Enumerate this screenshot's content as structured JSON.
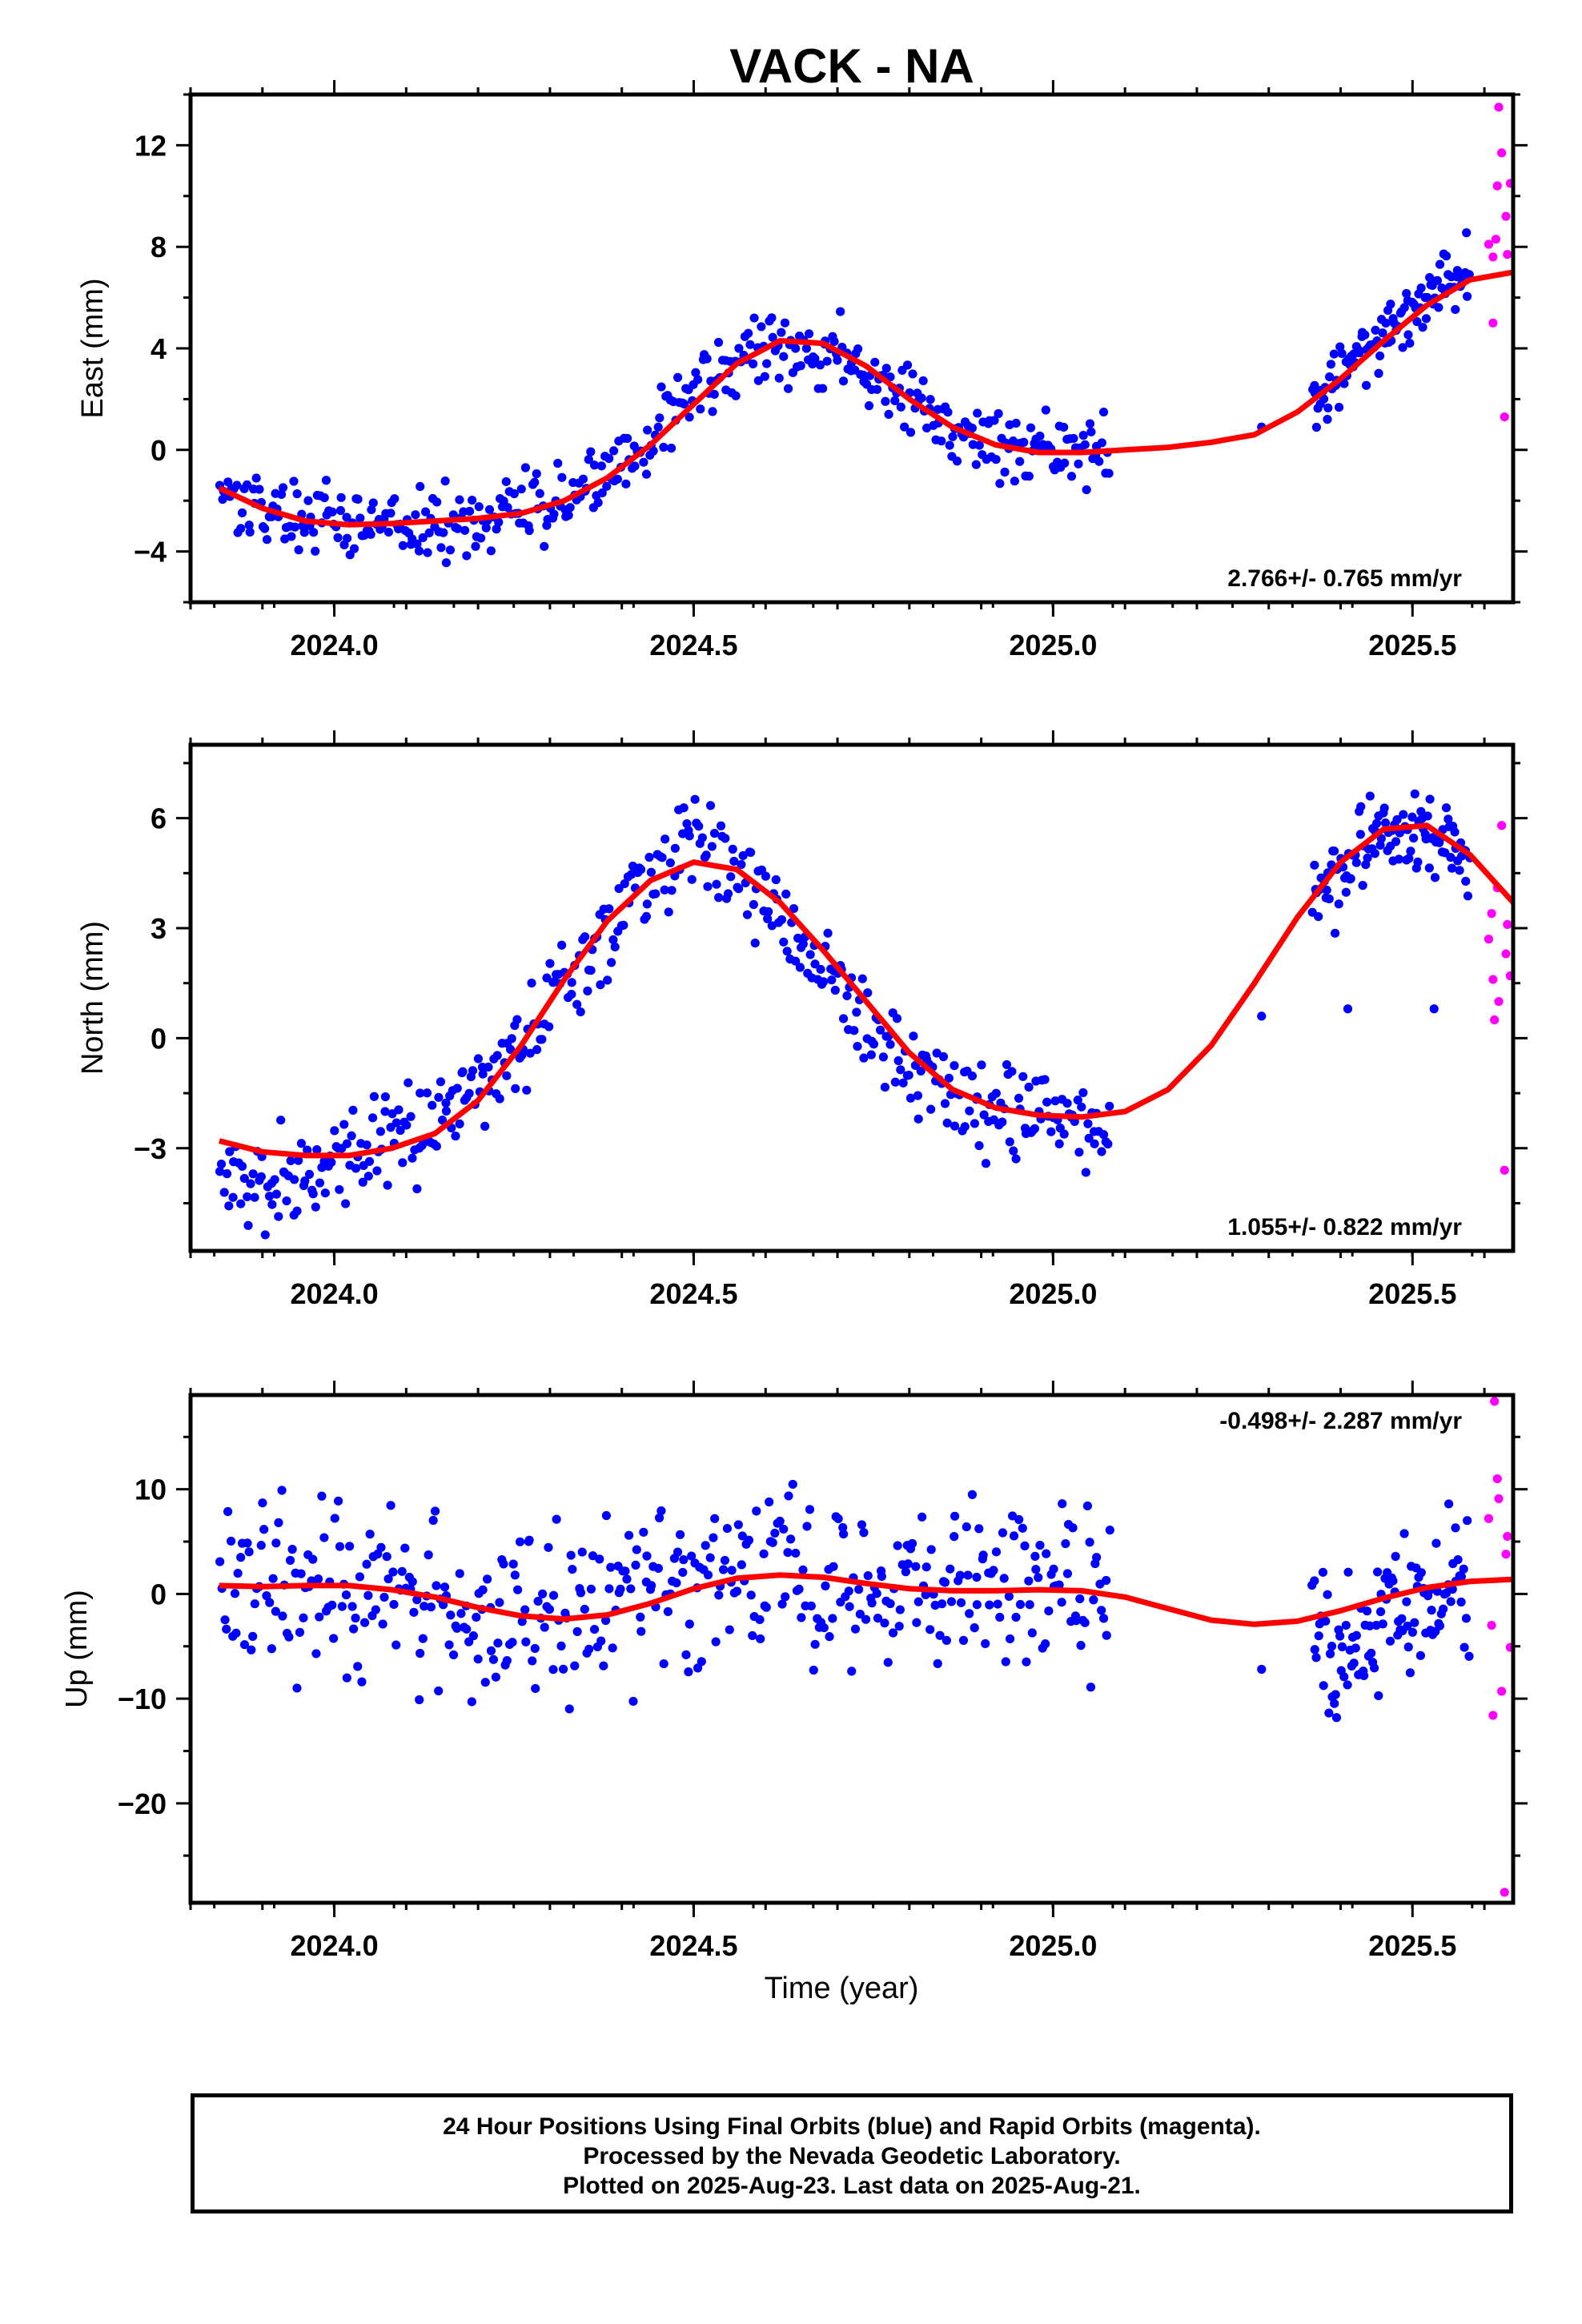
{
  "title": "VACK - NA",
  "xlabel": "Time (year)",
  "footer": {
    "line1": "24 Hour Positions Using Final Orbits (blue) and Rapid Orbits (magenta).",
    "line2": "Processed by the Nevada Geodetic Laboratory.",
    "line3": "Plotted on 2025-Aug-23. Last data on 2025-Aug-21."
  },
  "colors": {
    "final": "#0000ff",
    "rapid": "#ff00ff",
    "model": "#ff0000",
    "frame": "#000000"
  },
  "chart_data": [
    {
      "type": "scatter",
      "ylabel": "East (mm)",
      "rate_text": "2.766+/- 0.765 mm/yr",
      "xlim": [
        2023.8,
        2025.64
      ],
      "ylim": [
        -6,
        14
      ],
      "xticks": [
        "2024.0",
        "2024.5",
        "2025.0",
        "2025.5"
      ],
      "yticks": [
        "−4",
        "0",
        "4",
        "8",
        "12"
      ],
      "final_trend": {
        "t": [
          2023.84,
          2023.88,
          2023.92,
          2023.96,
          2024.0,
          2024.04,
          2024.08,
          2024.12,
          2024.16,
          2024.2,
          2024.24,
          2024.28,
          2024.32,
          2024.36,
          2024.4,
          2024.44,
          2024.48,
          2024.52,
          2024.56,
          2024.6,
          2024.64,
          2024.68,
          2024.72,
          2024.76,
          2024.8,
          2024.84,
          2024.88,
          2024.92,
          2024.96,
          2025.0,
          2025.04,
          2025.08
        ],
        "y": [
          -1.5,
          -1.9,
          -2.3,
          -2.6,
          -2.8,
          -2.9,
          -3.0,
          -3.0,
          -2.9,
          -2.8,
          -2.6,
          -2.3,
          -2.0,
          -1.3,
          -0.5,
          0.5,
          1.6,
          2.6,
          3.3,
          3.8,
          4.1,
          3.9,
          3.4,
          2.7,
          1.9,
          1.1,
          0.6,
          0.3,
          0.1,
          0.0,
          -0.1,
          -0.1
        ],
        "amp": 1.1
      },
      "final_trend2": {
        "t": [
          2025.36,
          2025.38,
          2025.4,
          2025.42,
          2025.44,
          2025.46,
          2025.48,
          2025.5,
          2025.52,
          2025.54,
          2025.56,
          2025.58
        ],
        "y": [
          1.7,
          2.2,
          2.7,
          3.3,
          3.9,
          4.5,
          5.0,
          5.6,
          6.1,
          6.5,
          6.8,
          7.0
        ],
        "amp": 1.0
      },
      "rapid": [
        [
          2025.606,
          8.1
        ],
        [
          2025.612,
          7.6
        ],
        [
          2025.618,
          10.4
        ],
        [
          2025.624,
          11.7
        ],
        [
          2025.63,
          9.2
        ],
        [
          2025.612,
          5.0
        ],
        [
          2025.628,
          1.3
        ],
        [
          2025.62,
          13.5
        ],
        [
          2025.636,
          10.5
        ],
        [
          2025.632,
          7.7
        ],
        [
          2025.616,
          8.3
        ]
      ],
      "model": {
        "t": [
          2023.84,
          2023.9,
          2023.96,
          2024.02,
          2024.08,
          2024.14,
          2024.2,
          2024.26,
          2024.32,
          2024.38,
          2024.44,
          2024.5,
          2024.56,
          2024.62,
          2024.68,
          2024.74,
          2024.8,
          2024.86,
          2024.92,
          2024.98,
          2025.04,
          2025.1,
          2025.16,
          2025.22,
          2025.28,
          2025.34,
          2025.4,
          2025.46,
          2025.52,
          2025.58,
          2025.64
        ],
        "y": [
          -1.5,
          -2.3,
          -2.8,
          -2.95,
          -2.9,
          -2.8,
          -2.7,
          -2.5,
          -2.0,
          -1.1,
          0.2,
          1.8,
          3.4,
          4.3,
          4.2,
          3.3,
          2.0,
          0.9,
          0.2,
          -0.1,
          -0.1,
          0.0,
          0.1,
          0.3,
          0.6,
          1.5,
          2.8,
          4.3,
          5.7,
          6.7,
          7.0
        ]
      }
    },
    {
      "type": "scatter",
      "ylabel": "North (mm)",
      "rate_text": "1.055+/- 0.822 mm/yr",
      "xlim": [
        2023.8,
        2025.64
      ],
      "ylim": [
        -5.8,
        8
      ],
      "xticks": [
        "2024.0",
        "2024.5",
        "2025.0",
        "2025.5"
      ],
      "yticks": [
        "−3",
        "0",
        "3",
        "6"
      ],
      "final_trend": {
        "t": [
          2023.84,
          2023.88,
          2023.92,
          2023.96,
          2024.0,
          2024.04,
          2024.08,
          2024.12,
          2024.16,
          2024.2,
          2024.24,
          2024.28,
          2024.32,
          2024.36,
          2024.4,
          2024.44,
          2024.48,
          2024.52,
          2024.56,
          2024.6,
          2024.64,
          2024.68,
          2024.72,
          2024.76,
          2024.8,
          2024.84,
          2024.88,
          2024.92,
          2024.96,
          2025.0,
          2025.04,
          2025.08
        ],
        "y": [
          -3.8,
          -4.2,
          -3.9,
          -3.6,
          -3.4,
          -3.0,
          -2.6,
          -2.4,
          -1.9,
          -1.2,
          -0.6,
          0.2,
          1.3,
          2.5,
          3.7,
          4.6,
          5.4,
          5.6,
          4.8,
          3.8,
          2.7,
          1.8,
          1.0,
          0.0,
          -0.7,
          -1.4,
          -1.8,
          -2.1,
          -2.2,
          -2.0,
          -2.2,
          -2.6
        ],
        "amp": 1.0
      },
      "final_trend2": {
        "t": [
          2025.36,
          2025.38,
          2025.4,
          2025.42,
          2025.44,
          2025.46,
          2025.48,
          2025.5,
          2025.52,
          2025.54,
          2025.56,
          2025.58
        ],
        "y": [
          3.7,
          4.0,
          4.6,
          5.0,
          5.3,
          5.5,
          5.6,
          5.6,
          5.5,
          5.3,
          5.1,
          4.9
        ],
        "amp": 0.9
      },
      "rapid": [
        [
          2025.606,
          2.7
        ],
        [
          2025.612,
          1.6
        ],
        [
          2025.618,
          4.1
        ],
        [
          2025.624,
          5.8
        ],
        [
          2025.63,
          2.3
        ],
        [
          2025.614,
          0.5
        ],
        [
          2025.628,
          -3.6
        ],
        [
          2025.62,
          1.0
        ],
        [
          2025.636,
          1.7
        ],
        [
          2025.632,
          3.1
        ],
        [
          2025.61,
          3.4
        ]
      ],
      "model": {
        "t": [
          2023.84,
          2023.9,
          2023.96,
          2024.02,
          2024.08,
          2024.14,
          2024.2,
          2024.26,
          2024.32,
          2024.38,
          2024.44,
          2024.5,
          2024.56,
          2024.62,
          2024.68,
          2024.74,
          2024.8,
          2024.86,
          2024.92,
          2024.98,
          2025.04,
          2025.1,
          2025.16,
          2025.22,
          2025.28,
          2025.34,
          2025.4,
          2025.46,
          2025.52,
          2025.58,
          2025.64
        ],
        "y": [
          -2.8,
          -3.1,
          -3.2,
          -3.2,
          -3.0,
          -2.6,
          -1.7,
          -0.2,
          1.6,
          3.2,
          4.3,
          4.8,
          4.6,
          3.7,
          2.4,
          1.0,
          -0.4,
          -1.4,
          -1.9,
          -2.1,
          -2.15,
          -2.0,
          -1.4,
          -0.2,
          1.5,
          3.3,
          4.8,
          5.7,
          5.8,
          5.0,
          3.7
        ]
      }
    },
    {
      "type": "scatter",
      "ylabel": "Up (mm)",
      "rate_text": "-0.498+/- 2.287 mm/yr",
      "xlim": [
        2023.8,
        2025.64
      ],
      "ylim": [
        -29.5,
        19
      ],
      "xticks": [
        "2024.0",
        "2024.5",
        "2025.0",
        "2025.5"
      ],
      "yticks": [
        "−20",
        "−10",
        "0",
        "10"
      ],
      "final_trend": {
        "t": [
          2023.84,
          2023.88,
          2023.92,
          2023.96,
          2024.0,
          2024.04,
          2024.08,
          2024.12,
          2024.16,
          2024.2,
          2024.24,
          2024.28,
          2024.32,
          2024.36,
          2024.4,
          2024.44,
          2024.48,
          2024.52,
          2024.56,
          2024.6,
          2024.64,
          2024.68,
          2024.72,
          2024.76,
          2024.8,
          2024.84,
          2024.88,
          2024.92,
          2024.96,
          2025.0,
          2025.04,
          2025.08
        ],
        "y": [
          1.5,
          1.2,
          0.8,
          0.4,
          0.5,
          0.8,
          0.6,
          0.2,
          -0.4,
          -1.2,
          -1.8,
          -2.2,
          -2.1,
          -1.5,
          -0.8,
          0.0,
          0.8,
          1.6,
          2.2,
          2.4,
          2.2,
          1.8,
          1.3,
          0.9,
          0.7,
          0.6,
          0.6,
          0.7,
          0.7,
          0.6,
          0.4,
          0.2
        ],
        "amp": 6.5
      },
      "final_trend2": {
        "t": [
          2025.36,
          2025.38,
          2025.4,
          2025.42,
          2025.44,
          2025.46,
          2025.48,
          2025.5,
          2025.52,
          2025.54,
          2025.56,
          2025.58
        ],
        "y": [
          -6.5,
          -6.0,
          -5.2,
          -4.3,
          -3.5,
          -2.7,
          -1.9,
          -1.2,
          -0.6,
          -0.1,
          0.3,
          0.6
        ],
        "amp": 5.5
      },
      "rapid": [
        [
          2025.606,
          7.2
        ],
        [
          2025.612,
          -11.6
        ],
        [
          2025.618,
          11.0
        ],
        [
          2025.624,
          -9.3
        ],
        [
          2025.63,
          3.8
        ],
        [
          2025.614,
          18.4
        ],
        [
          2025.628,
          -28.5
        ],
        [
          2025.62,
          9.1
        ],
        [
          2025.636,
          -5.1
        ],
        [
          2025.632,
          5.5
        ],
        [
          2025.61,
          -3.0
        ]
      ],
      "model": {
        "t": [
          2023.84,
          2023.9,
          2023.96,
          2024.02,
          2024.08,
          2024.14,
          2024.2,
          2024.26,
          2024.32,
          2024.38,
          2024.44,
          2024.5,
          2024.56,
          2024.62,
          2024.68,
          2024.74,
          2024.8,
          2024.86,
          2024.92,
          2024.98,
          2025.04,
          2025.1,
          2025.16,
          2025.22,
          2025.28,
          2025.34,
          2025.4,
          2025.46,
          2025.52,
          2025.58,
          2025.64
        ],
        "y": [
          0.8,
          0.7,
          0.8,
          0.8,
          0.4,
          -0.3,
          -1.3,
          -2.1,
          -2.4,
          -2.0,
          -0.9,
          0.5,
          1.5,
          1.8,
          1.6,
          1.0,
          0.5,
          0.3,
          0.3,
          0.4,
          0.3,
          -0.3,
          -1.4,
          -2.5,
          -2.9,
          -2.6,
          -1.6,
          -0.4,
          0.6,
          1.2,
          1.4
        ]
      }
    }
  ]
}
